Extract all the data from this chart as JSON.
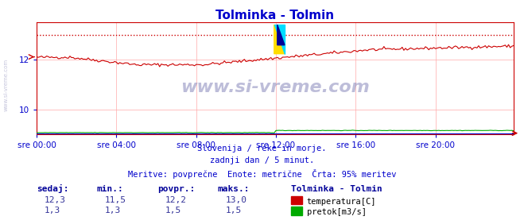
{
  "title": "Tolminka - Tolmin",
  "title_color": "#0000cc",
  "bg_color": "#ffffff",
  "plot_bg_color": "#ffffff",
  "grid_color": "#ffaaaa",
  "axis_color": "#cc0000",
  "text_color": "#0000cc",
  "watermark": "www.si-vreme.com",
  "subtitle_lines": [
    "Slovenija / reke in morje.",
    "zadnji dan / 5 minut.",
    "Meritve: povprečne  Enote: metrične  Črta: 95% meritev"
  ],
  "xticklabels": [
    "sre 00:00",
    "sre 04:00",
    "sre 08:00",
    "sre 12:00",
    "sre 16:00",
    "sre 20:00"
  ],
  "xtick_positions": [
    0,
    48,
    96,
    144,
    192,
    240
  ],
  "total_points": 288,
  "ylim": [
    9.0,
    13.5
  ],
  "yticks": [
    10,
    12
  ],
  "temp_min": 11.5,
  "temp_max": 13.0,
  "temp_avg": 12.2,
  "temp_current": 12.3,
  "flow_min": 1.3,
  "flow_max": 1.5,
  "flow_avg": 1.5,
  "flow_current": 1.3,
  "temp_color": "#cc0000",
  "flow_color": "#00aa00",
  "blue_line_color": "#0000cc",
  "dashed_line_color": "#cc0000",
  "dashed_line_value": 13.0,
  "arrow_color": "#cc0000",
  "table_headers": [
    "sedaj:",
    "min.:",
    "povpr.:",
    "maks.:"
  ],
  "table_header_color": "#000099",
  "table_value_color": "#333399",
  "legend_title": "Tolminka - Tolmin",
  "legend_title_color": "#000099",
  "legend_entries": [
    "temperatura[C]",
    "pretok[m3/s]"
  ],
  "legend_colors": [
    "#cc0000",
    "#00aa00"
  ]
}
